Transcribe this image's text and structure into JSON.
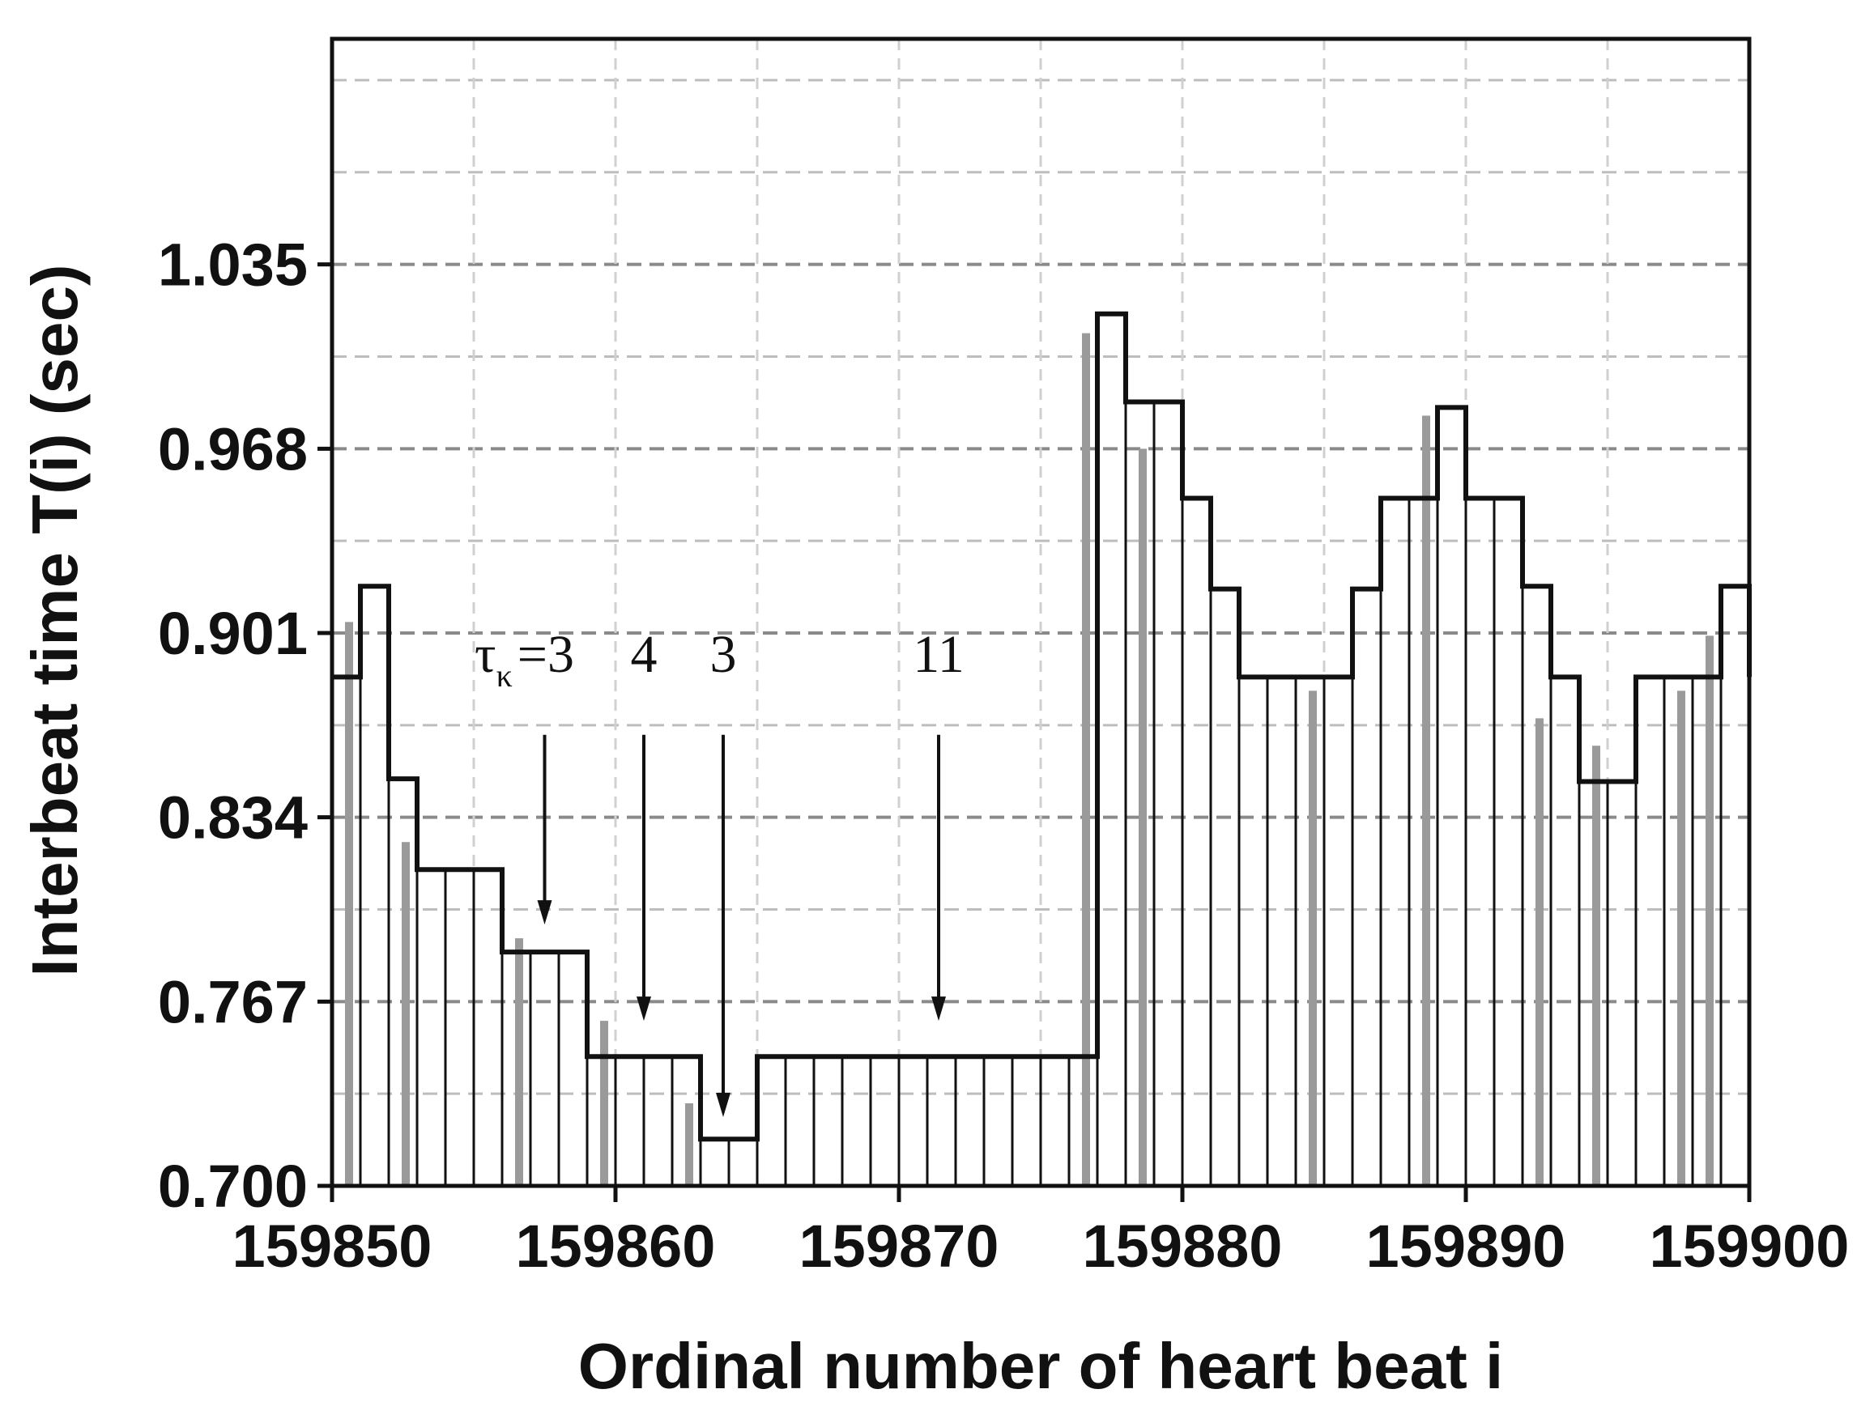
{
  "chart_data": {
    "type": "line",
    "title": "",
    "xlabel": "Ordinal number of heart beat i",
    "ylabel": "Interbeat time T(i) (sec)",
    "xlim": [
      159850,
      159900
    ],
    "ylim": [
      0.7,
      1.117
    ],
    "x_ticks": [
      159850,
      159860,
      159870,
      159880,
      159890,
      159900
    ],
    "x_tick_labels": [
      "159850",
      "159860",
      "159870",
      "159880",
      "159890",
      "159900"
    ],
    "y_ticks": [
      0.7,
      0.767,
      0.834,
      0.901,
      0.968,
      1.035
    ],
    "y_tick_labels": [
      "0.700",
      "0.767",
      "0.834",
      "0.901",
      "0.968",
      "1.035"
    ],
    "grid": true,
    "legend": "none",
    "series": [
      {
        "style": "step",
        "color": "#111111",
        "x": [
          159850,
          159851,
          159852,
          159853,
          159856,
          159859,
          159863,
          159865,
          159877,
          159878,
          159880,
          159881,
          159882,
          159886,
          159887,
          159889,
          159890,
          159892,
          159893,
          159894,
          159896,
          159899,
          159900
        ],
        "y": [
          0.885,
          0.918,
          0.848,
          0.815,
          0.785,
          0.747,
          0.717,
          0.747,
          1.017,
          0.985,
          0.95,
          0.917,
          0.885,
          0.917,
          0.95,
          0.983,
          0.95,
          0.918,
          0.885,
          0.847,
          0.885,
          0.918,
          0.885
        ]
      },
      {
        "style": "stems",
        "color": "#111111",
        "x": [
          159850,
          159851,
          159852,
          159853,
          159854,
          159855,
          159856,
          159857,
          159858,
          159859,
          159860,
          159861,
          159862,
          159863,
          159864,
          159865,
          159866,
          159867,
          159868,
          159869,
          159870,
          159871,
          159872,
          159873,
          159874,
          159875,
          159876,
          159877,
          159878,
          159879,
          159880,
          159881,
          159882,
          159883,
          159884,
          159885,
          159886,
          159887,
          159888,
          159889,
          159890,
          159891,
          159892,
          159893,
          159894,
          159895,
          159896,
          159897,
          159898,
          159899,
          159900
        ],
        "y": [
          0.885,
          0.918,
          0.848,
          0.815,
          0.815,
          0.815,
          0.785,
          0.785,
          0.785,
          0.747,
          0.747,
          0.747,
          0.747,
          0.717,
          0.717,
          0.747,
          0.747,
          0.747,
          0.747,
          0.747,
          0.747,
          0.747,
          0.747,
          0.747,
          0.747,
          0.747,
          0.747,
          1.017,
          0.985,
          0.985,
          0.95,
          0.917,
          0.885,
          0.885,
          0.885,
          0.885,
          0.917,
          0.95,
          0.95,
          0.983,
          0.95,
          0.95,
          0.918,
          0.885,
          0.847,
          0.847,
          0.885,
          0.885,
          0.885,
          0.918,
          0.885
        ]
      },
      {
        "style": "stems",
        "color": "#9a9a9a",
        "x": [
          159851,
          159853,
          159857,
          159860,
          159863,
          159877,
          159879,
          159885,
          159889,
          159893,
          159895,
          159898,
          159899
        ],
        "y": [
          0.905,
          0.825,
          0.79,
          0.76,
          0.73,
          1.01,
          0.968,
          0.88,
          0.98,
          0.87,
          0.86,
          0.88,
          0.9
        ]
      }
    ],
    "annotations": [
      {
        "symbol": "τ",
        "subscript": "κ",
        "text": "=3",
        "x": 159857.5,
        "y": 0.795
      },
      {
        "text": "4",
        "x": 159861,
        "y": 0.76
      },
      {
        "text": "3",
        "x": 159863.8,
        "y": 0.725
      },
      {
        "text": "11",
        "x": 159871.4,
        "y": 0.76
      }
    ]
  }
}
